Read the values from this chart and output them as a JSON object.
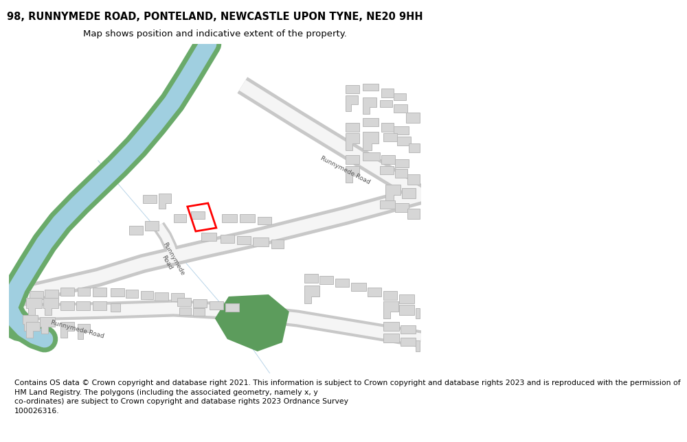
{
  "title": "98, RUNNYMEDE ROAD, PONTELAND, NEWCASTLE UPON TYNE, NE20 9HH",
  "subtitle": "Map shows position and indicative extent of the property.",
  "footer": "Contains OS data © Crown copyright and database right 2021. This information is subject to Crown copyright and database rights 2023 and is reproduced with the permission of\nHM Land Registry. The polygons (including the associated geometry, namely x, y\nco-ordinates) are subject to Crown copyright and database rights 2023 Ordnance Survey\n100026316.",
  "background_color": "#ffffff",
  "building_color": "#d6d6d6",
  "building_edge": "#b8b8b8",
  "river_water": "#a0cfe0",
  "river_bank": "#6aaa6a",
  "green_area": "#5c9c5c",
  "highlight_color": "#ff0000",
  "title_fontsize": 10.5,
  "subtitle_fontsize": 9.5,
  "footer_fontsize": 7.8,
  "road_label_fontsize": 6.5
}
